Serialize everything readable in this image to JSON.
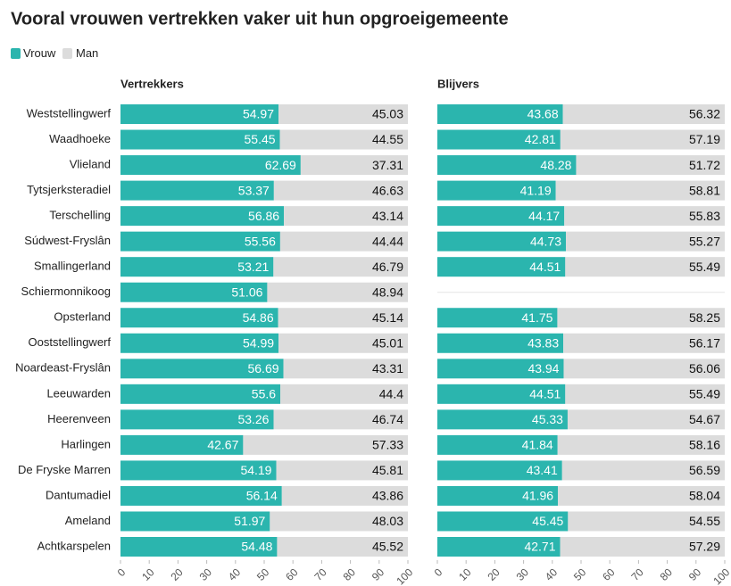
{
  "chart_data": {
    "type": "bar",
    "title": "Vooral vrouwen vertrekken vaker uit hun opgroeigemeente",
    "orientation": "horizontal",
    "stacked": true,
    "categories": [
      "Weststellingwerf",
      "Waadhoeke",
      "Vlieland",
      "Tytsjerksteradiel",
      "Terschelling",
      "Súdwest-Fryslân",
      "Smallingerland",
      "Schiermonnikoog",
      "Opsterland",
      "Ooststellingwerf",
      "Noardeast-Fryslân",
      "Leeuwarden",
      "Heerenveen",
      "Harlingen",
      "De Fryske Marren",
      "Dantumadiel",
      "Ameland",
      "Achtkarspelen"
    ],
    "xlim": [
      0,
      100
    ],
    "xticks": [
      0,
      10,
      20,
      30,
      40,
      50,
      60,
      70,
      80,
      90,
      100
    ],
    "panels": [
      {
        "title": "Vertrekkers",
        "series": [
          {
            "name": "Vrouw",
            "color": "#2bb5ae",
            "values": [
              54.97,
              55.45,
              62.69,
              53.37,
              56.86,
              55.56,
              53.21,
              51.06,
              54.86,
              54.99,
              56.69,
              55.6,
              53.26,
              42.67,
              54.19,
              56.14,
              51.97,
              54.48
            ]
          },
          {
            "name": "Man",
            "color": "#dcdcdc",
            "values": [
              45.03,
              44.55,
              37.31,
              46.63,
              43.14,
              44.44,
              46.79,
              48.94,
              45.14,
              45.01,
              43.31,
              44.4,
              46.74,
              57.33,
              45.81,
              43.86,
              48.03,
              45.52
            ]
          }
        ]
      },
      {
        "title": "Blijvers",
        "series": [
          {
            "name": "Vrouw",
            "color": "#2bb5ae",
            "values": [
              43.68,
              42.81,
              48.28,
              41.19,
              44.17,
              44.73,
              44.51,
              null,
              41.75,
              43.83,
              43.94,
              44.51,
              45.33,
              41.84,
              43.41,
              41.96,
              45.45,
              42.71
            ]
          },
          {
            "name": "Man",
            "color": "#dcdcdc",
            "values": [
              56.32,
              57.19,
              51.72,
              58.81,
              55.83,
              55.27,
              55.49,
              null,
              58.25,
              56.17,
              56.06,
              55.49,
              54.67,
              58.16,
              56.59,
              58.04,
              54.55,
              57.29
            ]
          }
        ]
      }
    ]
  }
}
